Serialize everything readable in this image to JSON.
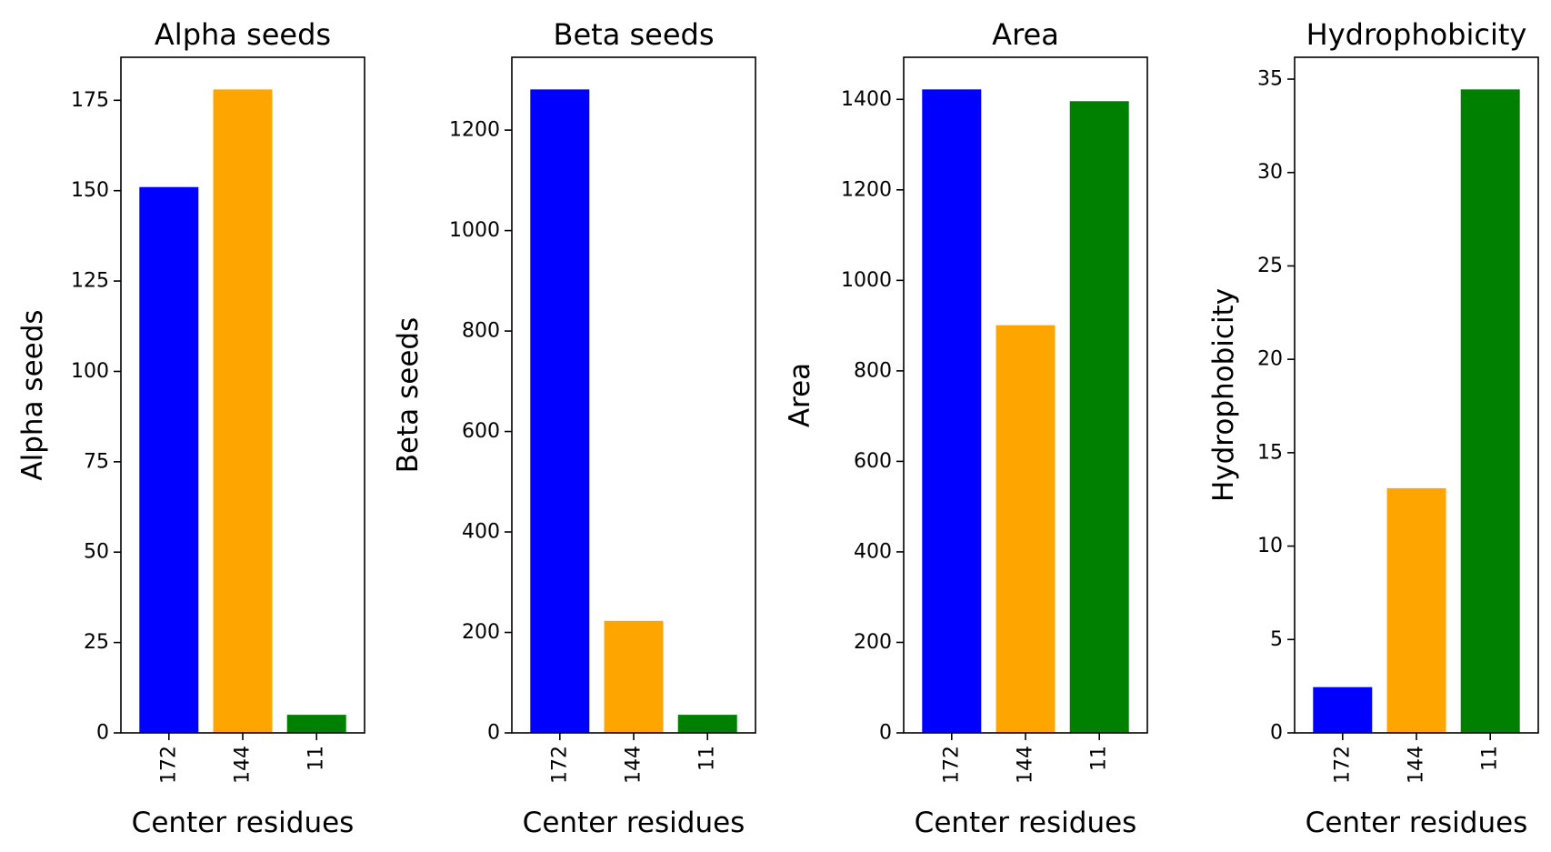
{
  "chart_data": [
    {
      "type": "bar",
      "title": "Alpha seeds",
      "xlabel": "Center residues",
      "ylabel": "Alpha seeds",
      "categories": [
        "172",
        "144",
        "11"
      ],
      "values": [
        151,
        178,
        5
      ],
      "colors": [
        "#0000ff",
        "#ffa500",
        "#008000"
      ],
      "ylim": [
        0,
        186.9
      ],
      "yticks": [
        0,
        25,
        50,
        75,
        100,
        125,
        150,
        175
      ],
      "grid": false,
      "legend": "none"
    },
    {
      "type": "bar",
      "title": "Beta seeds",
      "xlabel": "Center residues",
      "ylabel": "Beta seeds",
      "categories": [
        "172",
        "144",
        "11"
      ],
      "values": [
        1281,
        223,
        36
      ],
      "colors": [
        "#0000ff",
        "#ffa500",
        "#008000"
      ],
      "ylim": [
        0,
        1345
      ],
      "yticks": [
        0,
        200,
        400,
        600,
        800,
        1000,
        1200
      ],
      "grid": false,
      "legend": "none"
    },
    {
      "type": "bar",
      "title": "Area",
      "xlabel": "Center residues",
      "ylabel": "Area",
      "categories": [
        "172",
        "144",
        "11"
      ],
      "values": [
        1422,
        901,
        1396
      ],
      "colors": [
        "#0000ff",
        "#ffa500",
        "#008000"
      ],
      "ylim": [
        0,
        1493
      ],
      "yticks": [
        0,
        200,
        400,
        600,
        800,
        1000,
        1200,
        1400
      ],
      "grid": false,
      "legend": "none"
    },
    {
      "type": "bar",
      "title": "Hydrophobicity",
      "xlabel": "Center residues",
      "ylabel": "Hydrophobicity",
      "categories": [
        "172",
        "144",
        "11"
      ],
      "values": [
        2.45,
        13.1,
        34.45
      ],
      "colors": [
        "#0000ff",
        "#ffa500",
        "#008000"
      ],
      "ylim": [
        0,
        36.17
      ],
      "yticks": [
        0,
        5,
        10,
        15,
        20,
        25,
        30,
        35
      ],
      "grid": false,
      "legend": "none"
    }
  ]
}
